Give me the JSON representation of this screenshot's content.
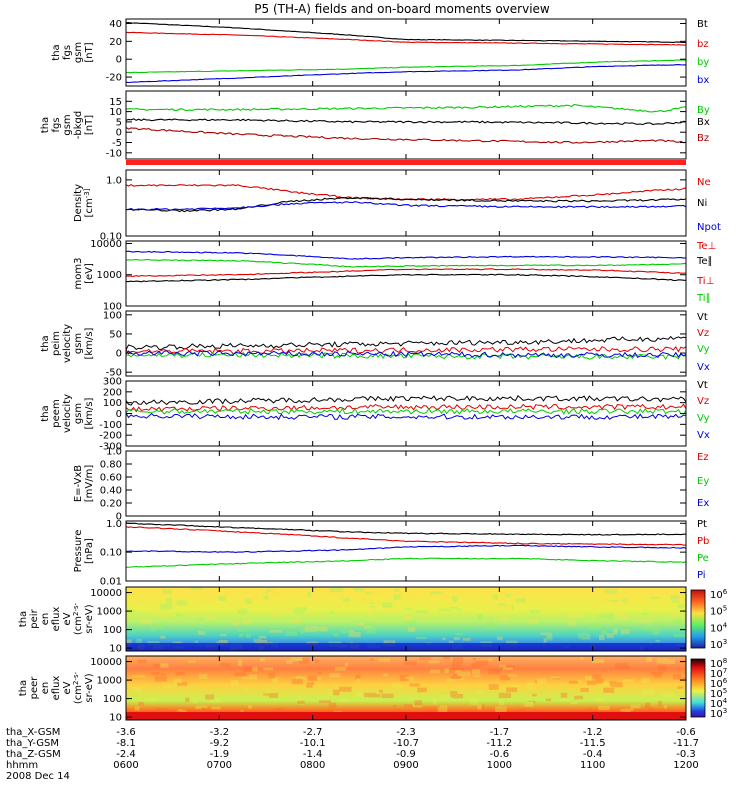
{
  "title": "P5 (TH-A) fields and on-board moments overview",
  "chart_data": [
    {
      "type": "line",
      "ylabel": [
        "tha",
        "fgs",
        "gsm",
        "[nT]"
      ],
      "ylim": [
        -30,
        45
      ],
      "yticks": [
        40,
        20,
        0,
        -20
      ],
      "log": false,
      "legend": [
        {
          "name": "Bt",
          "color": "#000000"
        },
        {
          "name": "bz",
          "color": "#e00000"
        },
        {
          "name": "by",
          "color": "#00cc00"
        },
        {
          "name": "bx",
          "color": "#0000dd"
        }
      ],
      "series": [
        {
          "name": "Bt",
          "color": "#000000",
          "x": [
            0,
            0.2,
            0.4,
            0.5,
            0.7,
            0.85,
            1
          ],
          "y": [
            41,
            35,
            27,
            22,
            21,
            20,
            19
          ]
        },
        {
          "name": "bz",
          "color": "#e00000",
          "x": [
            0,
            0.2,
            0.4,
            0.5,
            0.7,
            0.85,
            1
          ],
          "y": [
            30,
            27,
            22,
            19,
            18,
            17,
            16
          ]
        },
        {
          "name": "by",
          "color": "#00cc00",
          "x": [
            0,
            0.2,
            0.4,
            0.5,
            0.7,
            0.85,
            1
          ],
          "y": [
            -15,
            -13,
            -11,
            -9,
            -7,
            -3,
            -1
          ]
        },
        {
          "name": "bx",
          "color": "#0000dd",
          "x": [
            0,
            0.2,
            0.4,
            0.5,
            0.7,
            0.85,
            1
          ],
          "y": [
            -26,
            -21,
            -16,
            -14,
            -12,
            -8,
            -6
          ]
        }
      ]
    },
    {
      "type": "line",
      "ylabel": [
        "tha",
        "fgs",
        "gsm",
        "-bkgd",
        "[nT]"
      ],
      "ylim": [
        -13,
        20
      ],
      "yticks": [
        15,
        10,
        5,
        0,
        -5,
        -10
      ],
      "log": false,
      "legend": [
        {
          "name": "By",
          "color": "#00cc00"
        },
        {
          "name": "Bx",
          "color": "#000000"
        },
        {
          "name": "Bz",
          "color": "#aa0000"
        }
      ],
      "series": [
        {
          "name": "By",
          "color": "#00cc00",
          "x": [
            0,
            0.2,
            0.4,
            0.6,
            0.8,
            0.95,
            1
          ],
          "y": [
            11,
            11,
            11.5,
            12,
            13,
            10,
            12
          ]
        },
        {
          "name": "Bx",
          "color": "#000000",
          "x": [
            0,
            0.2,
            0.4,
            0.6,
            0.8,
            0.95,
            1
          ],
          "y": [
            6,
            6,
            5,
            5,
            4.5,
            4,
            5
          ]
        },
        {
          "name": "Bz",
          "color": "#aa0000",
          "x": [
            0,
            0.2,
            0.4,
            0.6,
            0.8,
            0.95,
            1
          ],
          "y": [
            2,
            -1,
            -3,
            -4,
            -5,
            -4,
            -5
          ]
        }
      ]
    },
    {
      "type": "line",
      "ylabel": [
        "Density",
        "[cm^-3]"
      ],
      "ylim": [
        0.1,
        1.5
      ],
      "yticks": [
        1.0,
        0.1
      ],
      "log": true,
      "legend": [
        {
          "name": "Ne",
          "color": "#e00000"
        },
        {
          "name": "Ni",
          "color": "#000000"
        },
        {
          "name": "Npot",
          "color": "#0000dd"
        },
        {
          "name": "Te⊥",
          "color": "#e00000"
        }
      ],
      "series": [
        {
          "name": "Ne",
          "color": "#e00000",
          "x": [
            0,
            0.1,
            0.2,
            0.3,
            0.4,
            0.5,
            0.7,
            0.85,
            1
          ],
          "y": [
            0.8,
            0.8,
            0.8,
            0.6,
            0.48,
            0.45,
            0.45,
            0.55,
            0.7
          ]
        },
        {
          "name": "Ni",
          "color": "#000000",
          "x": [
            0,
            0.1,
            0.2,
            0.3,
            0.4,
            0.5,
            0.7,
            0.85,
            1
          ],
          "y": [
            0.3,
            0.28,
            0.3,
            0.42,
            0.48,
            0.45,
            0.42,
            0.42,
            0.45
          ]
        },
        {
          "name": "Npot",
          "color": "#0000dd",
          "x": [
            0,
            0.1,
            0.2,
            0.3,
            0.4,
            0.5,
            0.7,
            0.85,
            1
          ],
          "y": [
            0.3,
            0.3,
            0.32,
            0.38,
            0.4,
            0.35,
            0.33,
            0.33,
            0.34
          ]
        }
      ]
    },
    {
      "type": "line",
      "ylabel": [
        "mom3",
        "[eV]"
      ],
      "ylim": [
        100,
        12000
      ],
      "yticks": [
        10000,
        1000,
        100
      ],
      "log": true,
      "legend": [
        {
          "name": "Te∥",
          "color": "#000000"
        },
        {
          "name": "Ti⊥",
          "color": "#e00000"
        },
        {
          "name": "Ti∥",
          "color": "#00cc00"
        }
      ],
      "series": [
        {
          "name": "Ti",
          "color": "#0000dd",
          "x": [
            0,
            0.2,
            0.4,
            0.5,
            0.7,
            0.85,
            1
          ],
          "y": [
            5500,
            5000,
            3200,
            3500,
            3800,
            3700,
            3500
          ]
        },
        {
          "name": "Ti∥",
          "color": "#00cc00",
          "x": [
            0,
            0.2,
            0.4,
            0.5,
            0.7,
            0.85,
            1
          ],
          "y": [
            3000,
            2800,
            1800,
            1900,
            2000,
            2000,
            2200
          ]
        },
        {
          "name": "Ti⊥",
          "color": "#e00000",
          "x": [
            0,
            0.2,
            0.4,
            0.5,
            0.7,
            0.85,
            1
          ],
          "y": [
            900,
            1000,
            1300,
            1500,
            1500,
            1400,
            1100
          ]
        },
        {
          "name": "Te∥",
          "color": "#000000",
          "x": [
            0,
            0.2,
            0.4,
            0.5,
            0.7,
            0.85,
            1
          ],
          "y": [
            600,
            700,
            900,
            1000,
            1000,
            850,
            650
          ]
        }
      ]
    },
    {
      "type": "line",
      "ylabel": [
        "tha",
        "peim",
        "velocity",
        "gsm",
        "[km/s]"
      ],
      "ylim": [
        -60,
        110
      ],
      "yticks": [
        100,
        50,
        0,
        -50
      ],
      "log": false,
      "legend": [
        {
          "name": "Vt",
          "color": "#000000"
        },
        {
          "name": "Vz",
          "color": "#e00000"
        },
        {
          "name": "Vy",
          "color": "#00cc00"
        },
        {
          "name": "Vx",
          "color": "#0000dd"
        }
      ],
      "series": [
        {
          "name": "Vt",
          "color": "#000000",
          "x": [
            0,
            0.25,
            0.5,
            0.75,
            1
          ],
          "y": [
            15,
            20,
            25,
            30,
            40
          ]
        },
        {
          "name": "Vz",
          "color": "#e00000",
          "x": [
            0,
            0.25,
            0.5,
            0.75,
            1
          ],
          "y": [
            5,
            5,
            8,
            10,
            10
          ]
        },
        {
          "name": "Vy",
          "color": "#00cc00",
          "x": [
            0,
            0.25,
            0.5,
            0.75,
            1
          ],
          "y": [
            -5,
            -5,
            -8,
            -10,
            -10
          ]
        },
        {
          "name": "Vx",
          "color": "#0000dd",
          "x": [
            0,
            0.25,
            0.5,
            0.75,
            1
          ],
          "y": [
            0,
            -2,
            -3,
            -5,
            -5
          ]
        }
      ]
    },
    {
      "type": "line",
      "ylabel": [
        "tha",
        "peem",
        "velocity",
        "gsm",
        "[km/s]"
      ],
      "ylim": [
        -300,
        300
      ],
      "yticks": [
        300,
        200,
        100,
        0,
        -100,
        -200,
        -300
      ],
      "log": false,
      "legend": [
        {
          "name": "Vt",
          "color": "#000000"
        },
        {
          "name": "Vz",
          "color": "#e00000"
        },
        {
          "name": "Vy",
          "color": "#00cc00"
        },
        {
          "name": "Vx",
          "color": "#0000dd"
        }
      ],
      "series": [
        {
          "name": "Vt",
          "color": "#000000",
          "x": [
            0,
            0.25,
            0.5,
            0.75,
            1
          ],
          "y": [
            100,
            120,
            140,
            140,
            130
          ]
        },
        {
          "name": "Vz",
          "color": "#e00000",
          "x": [
            0,
            0.25,
            0.5,
            0.75,
            1
          ],
          "y": [
            40,
            50,
            60,
            60,
            60
          ]
        },
        {
          "name": "Vy",
          "color": "#00cc00",
          "x": [
            0,
            0.25,
            0.5,
            0.75,
            1
          ],
          "y": [
            20,
            20,
            20,
            20,
            20
          ]
        },
        {
          "name": "Vx",
          "color": "#0000dd",
          "x": [
            0,
            0.25,
            0.5,
            0.75,
            1
          ],
          "y": [
            -20,
            -30,
            -30,
            -30,
            -30
          ]
        }
      ]
    },
    {
      "type": "line",
      "ylabel": [
        "E=-VxB",
        "[mV/m]"
      ],
      "ylim": [
        0,
        1.0
      ],
      "yticks": [
        1.0,
        0.8,
        0.6,
        0.4,
        0.2,
        0.0
      ],
      "log": false,
      "legend": [
        {
          "name": "Ez",
          "color": "#e00000"
        },
        {
          "name": "Ey",
          "color": "#00cc00"
        },
        {
          "name": "Ex",
          "color": "#0000dd"
        }
      ],
      "series": []
    },
    {
      "type": "line",
      "ylabel": [
        "Pressure",
        "[nPa]"
      ],
      "ylim": [
        0.01,
        1.2
      ],
      "yticks": [
        1.0,
        0.1,
        0.01
      ],
      "log": true,
      "legend": [
        {
          "name": "Pt",
          "color": "#000000"
        },
        {
          "name": "Pb",
          "color": "#e00000"
        },
        {
          "name": "Pe",
          "color": "#00cc00"
        },
        {
          "name": "Pi",
          "color": "#0000dd"
        }
      ],
      "series": [
        {
          "name": "Pt",
          "color": "#000000",
          "x": [
            0,
            0.2,
            0.4,
            0.5,
            0.7,
            0.85,
            1
          ],
          "y": [
            1.0,
            0.7,
            0.5,
            0.45,
            0.42,
            0.4,
            0.42
          ]
        },
        {
          "name": "Pb",
          "color": "#e00000",
          "x": [
            0,
            0.2,
            0.4,
            0.5,
            0.7,
            0.85,
            1
          ],
          "y": [
            0.75,
            0.5,
            0.3,
            0.24,
            0.2,
            0.19,
            0.18
          ]
        },
        {
          "name": "Pi",
          "color": "#0000dd",
          "x": [
            0,
            0.2,
            0.4,
            0.5,
            0.7,
            0.85,
            1
          ],
          "y": [
            0.11,
            0.1,
            0.12,
            0.15,
            0.17,
            0.15,
            0.14
          ]
        },
        {
          "name": "Pe",
          "color": "#00cc00",
          "x": [
            0,
            0.2,
            0.4,
            0.5,
            0.7,
            0.85,
            1
          ],
          "y": [
            0.03,
            0.04,
            0.05,
            0.06,
            0.06,
            0.05,
            0.045
          ]
        }
      ]
    },
    {
      "type": "heatmap",
      "ylabel": [
        "tha",
        "peir",
        "en",
        "eflux",
        "eV",
        "(cm^2-s-",
        "sr-eV)"
      ],
      "ylim": [
        7,
        20000
      ],
      "yticks": [
        10000,
        1000,
        100,
        10
      ],
      "log": true,
      "colorbar": {
        "ticks": [
          "10^6",
          "10^5",
          "10^4",
          "10^3"
        ]
      }
    },
    {
      "type": "heatmap",
      "ylabel": [
        "tha",
        "peer",
        "en",
        "eflux",
        "eV",
        "(cm^2-s-",
        "sr-eV)"
      ],
      "ylim": [
        7,
        20000
      ],
      "yticks": [
        10000,
        1000,
        100,
        10
      ],
      "log": true,
      "colorbar": {
        "ticks": [
          "10^8",
          "10^7",
          "10^6",
          "10^5",
          "10^4",
          "10^3"
        ]
      }
    }
  ],
  "x_axis": {
    "rows": [
      {
        "label": "tha_X-GSM",
        "values": [
          "-3.6",
          "-3.2",
          "-2.7",
          "-2.3",
          "-1.7",
          "-1.2",
          "-0.6"
        ]
      },
      {
        "label": "tha_Y-GSM",
        "values": [
          "-8.1",
          "-9.2",
          "-10.1",
          "-10.7",
          "-11.2",
          "-11.5",
          "-11.7"
        ]
      },
      {
        "label": "tha_Z-GSM",
        "values": [
          "-2.4",
          "-1.9",
          "-1.4",
          "-0.9",
          "-0.6",
          "-0.4",
          "-0.3"
        ]
      },
      {
        "label": "hhmm",
        "values": [
          "0600",
          "0700",
          "0800",
          "0900",
          "1000",
          "1100",
          "1200"
        ]
      }
    ],
    "date": "2008 Dec 14"
  }
}
